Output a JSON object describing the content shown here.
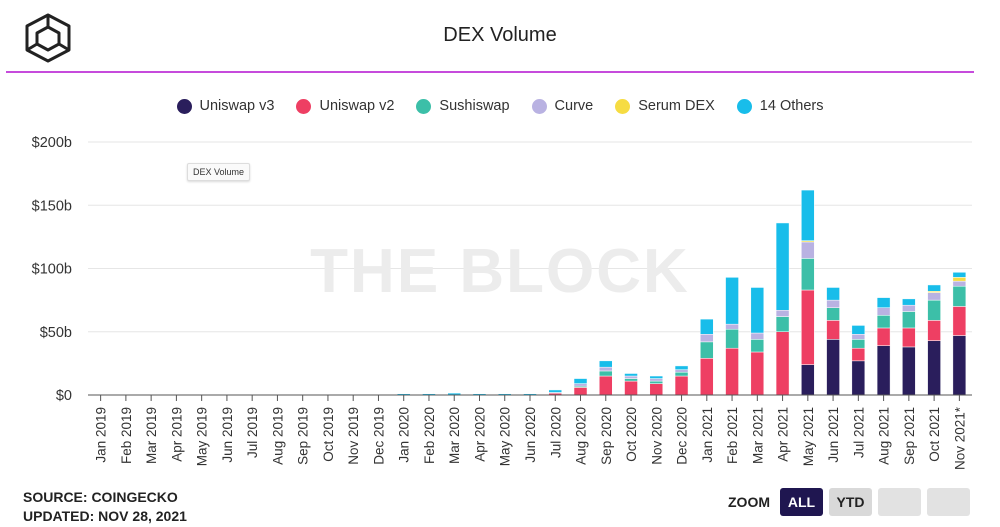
{
  "header": {
    "title": "DEX Volume"
  },
  "logo": {
    "icon": "the-block-cube-icon"
  },
  "watermark": "THE BLOCK",
  "tooltip": {
    "text": "DEX Volume"
  },
  "footer": {
    "source": "SOURCE: COINGECKO",
    "updated": "UPDATED: NOV 28, 2021"
  },
  "zoom": {
    "label": "ZOOM",
    "buttons": [
      {
        "label": "ALL",
        "active": true
      },
      {
        "label": "YTD",
        "active": false
      },
      {
        "label": "",
        "active": false
      },
      {
        "label": "",
        "active": false
      }
    ]
  },
  "chart_data": {
    "type": "bar",
    "stacked": true,
    "title": "DEX Volume",
    "xlabel": "",
    "ylabel": "",
    "ylim": [
      0,
      200
    ],
    "y_ticks": [
      0,
      50,
      100,
      150,
      200
    ],
    "y_tick_labels": [
      "$0",
      "$50b",
      "$100b",
      "$150b",
      "$200b"
    ],
    "legend_position": "top-center",
    "grid": true,
    "categories": [
      "Jan 2019",
      "Feb 2019",
      "Mar 2019",
      "Apr 2019",
      "May 2019",
      "Jun 2019",
      "Jul 2019",
      "Aug 2019",
      "Sep 2019",
      "Oct 2019",
      "Nov 2019",
      "Dec 2019",
      "Jan 2020",
      "Feb 2020",
      "Mar 2020",
      "Apr 2020",
      "May 2020",
      "Jun 2020",
      "Jul 2020",
      "Aug 2020",
      "Sep 2020",
      "Oct 2020",
      "Nov 2020",
      "Dec 2020",
      "Jan 2021",
      "Feb 2021",
      "Mar 2021",
      "Apr 2021",
      "May 2021",
      "Jun 2021",
      "Jul 2021",
      "Aug 2021",
      "Sep 2021",
      "Oct 2021",
      "Nov 2021*"
    ],
    "series": [
      {
        "name": "Uniswap v3",
        "color": "#2a1e5c",
        "values": [
          0,
          0,
          0,
          0,
          0,
          0,
          0,
          0,
          0,
          0,
          0,
          0,
          0,
          0,
          0,
          0,
          0,
          0,
          0,
          0,
          0,
          0,
          0,
          0,
          0,
          0,
          0,
          0,
          24,
          44,
          27,
          39,
          38,
          43,
          47
        ]
      },
      {
        "name": "Uniswap v2",
        "color": "#ee3f63",
        "values": [
          0,
          0,
          0,
          0,
          0,
          0,
          0,
          0,
          0,
          0,
          0,
          0,
          0,
          0,
          0,
          0,
          0,
          0,
          1.5,
          6,
          15,
          11,
          9,
          15,
          29,
          37,
          34,
          50,
          59,
          15,
          10,
          14,
          15,
          16,
          23
        ]
      },
      {
        "name": "Sushiswap",
        "color": "#3cbfa8",
        "values": [
          0,
          0,
          0,
          0,
          0,
          0,
          0,
          0,
          0,
          0,
          0,
          0,
          0,
          0,
          0,
          0,
          0,
          0,
          0,
          1,
          4,
          2,
          2,
          3,
          13,
          15,
          10,
          12,
          25,
          10,
          7,
          10,
          13,
          16,
          16
        ]
      },
      {
        "name": "Curve",
        "color": "#b9b2e2",
        "values": [
          0,
          0,
          0,
          0,
          0,
          0,
          0,
          0,
          0,
          0,
          0,
          0,
          0,
          0,
          0,
          0,
          0,
          0,
          0.5,
          2,
          3,
          2,
          2,
          2,
          6,
          4,
          5,
          5,
          13,
          6,
          4,
          6,
          5,
          6,
          4
        ]
      },
      {
        "name": "Serum DEX",
        "color": "#f6dc42",
        "values": [
          0,
          0,
          0,
          0,
          0,
          0,
          0,
          0,
          0,
          0,
          0,
          0,
          0,
          0,
          0,
          0,
          0,
          0,
          0,
          0,
          0,
          0,
          0,
          0,
          0,
          0,
          0,
          0,
          1,
          0,
          0,
          0,
          0,
          1,
          3
        ]
      },
      {
        "name": "14 Others",
        "color": "#18bdea",
        "values": [
          0,
          0,
          0,
          0,
          0,
          0,
          0,
          0,
          0,
          0,
          0,
          0,
          1,
          1,
          1.5,
          1,
          1,
          1,
          2,
          4,
          5,
          2,
          2,
          3,
          12,
          37,
          36,
          69,
          40,
          10,
          7,
          8,
          5,
          5,
          4
        ]
      }
    ]
  }
}
